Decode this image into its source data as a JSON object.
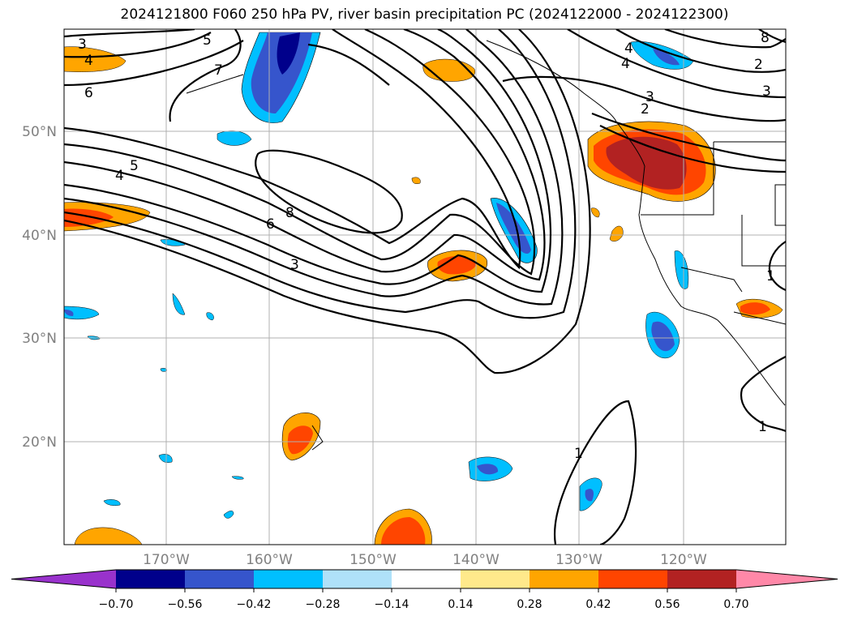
{
  "title": "2024121800 F060 250 hPa PV, river basin precipitation PC (2024122000 - 2024122300)",
  "lat_labels": [
    "50°N",
    "40°N",
    "30°N",
    "20°N"
  ],
  "lon_labels": [
    "170°W",
    "160°W",
    "150°W",
    "140°W",
    "130°W",
    "120°W"
  ],
  "pv_contour_labels": [
    "3",
    "4",
    "5",
    "6",
    "7",
    "8",
    "5",
    "4",
    "6",
    "3",
    "8",
    "4",
    "3",
    "2",
    "3",
    "2",
    "1",
    "1",
    "1",
    "4"
  ],
  "colorbar": {
    "ticks": [
      "−0.70",
      "−0.56",
      "−0.42",
      "−0.28",
      "−0.14",
      "0.14",
      "0.28",
      "0.42",
      "0.56",
      "0.70"
    ],
    "colors": [
      "#9932cc",
      "#00008b",
      "#3655cc",
      "#00bfff",
      "#afe1f9",
      "#ffffff",
      "#ffe98b",
      "#ffa500",
      "#ff4500",
      "#b22222",
      "#ff88a8"
    ]
  }
}
